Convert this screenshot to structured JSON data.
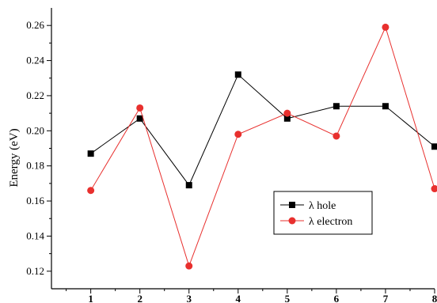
{
  "chart_data": {
    "type": "line",
    "title": "",
    "xlabel": "",
    "ylabel": "Energy (eV)",
    "categories": [
      "1",
      "2",
      "3",
      "4",
      "5",
      "6",
      "7",
      "8"
    ],
    "x": [
      1,
      2,
      3,
      4,
      5,
      6,
      7,
      8
    ],
    "xlim": [
      0.2,
      8
    ],
    "ylim": [
      0.11,
      0.27
    ],
    "yticks": [
      0.12,
      0.14,
      0.16,
      0.18,
      0.2,
      0.22,
      0.24,
      0.26
    ],
    "ytick_labels": [
      "0.12",
      "0.14",
      "0.16",
      "0.18",
      "0.20",
      "0.22",
      "0.24",
      "0.26"
    ],
    "grid": false,
    "legend_position": "lower-right",
    "series": [
      {
        "name": "λ hole",
        "color": "#000000",
        "marker": "square",
        "values": [
          0.187,
          0.207,
          0.169,
          0.232,
          0.207,
          0.214,
          0.214,
          0.191
        ]
      },
      {
        "name": "λ electron",
        "color": "#e8302e",
        "marker": "circle",
        "values": [
          0.166,
          0.213,
          0.123,
          0.198,
          0.21,
          0.197,
          0.259,
          0.167
        ]
      }
    ]
  }
}
